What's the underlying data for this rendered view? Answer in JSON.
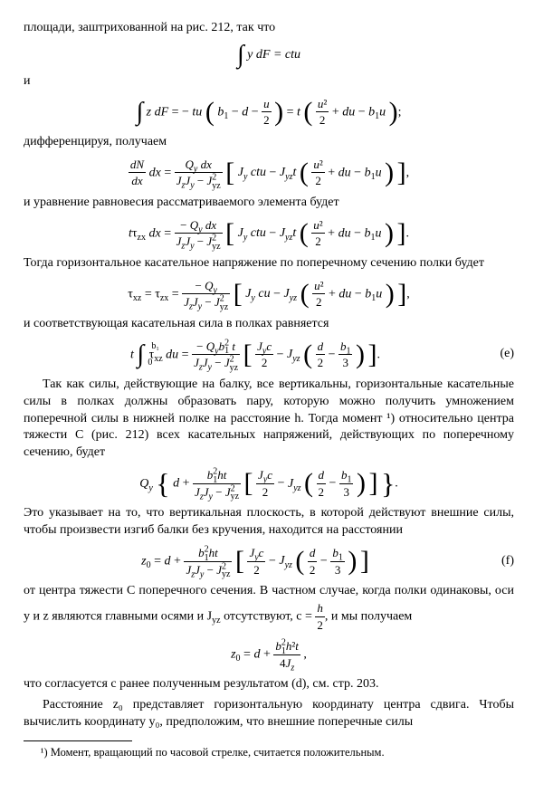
{
  "p1": "площади, заштрихованной на рис. 212, так что",
  "eq1_left": "∫ y dF",
  "eq1_right": "= ctu",
  "p2": "и",
  "eq2_a": "∫ z dF = − tu",
  "eq2_b": "b₁ − d −",
  "eq2_c": "u",
  "eq2_c2": "2",
  "eq2_d": "= t",
  "eq2_e": "u²",
  "eq2_e2": "2",
  "eq2_f": "+ du − b₁u",
  "eq2_g": ";",
  "p3": "дифференцируя, получаем",
  "eq3_a": "dN",
  "eq3_a2": "dx",
  "eq3_b": "dx =",
  "eq3_c": "Q",
  "eq3_c_y": "y",
  "eq3_c2": " dx",
  "eq3_d": "J",
  "eq3_d_z": "z",
  "eq3_d2": "J",
  "eq3_d2_y": "y",
  "eq3_d3": " − J",
  "eq3_d3_yz": "yz",
  "eq3_d3_sq": "2",
  "eq3_e": "J",
  "eq3_e_y": "y",
  "eq3_e2": " ctu − J",
  "eq3_e2_yz": "yz",
  "eq3_e3": "t",
  "eq3_f": "u²",
  "eq3_f2": "2",
  "eq3_g": "+ du − b₁u",
  "p4": "и уравнение равновесия рассматриваемого элемента будет",
  "eq4_a": "tτ",
  "eq4_a_zx": "zx",
  "eq4_b": " dx =",
  "eq4_c": "− Q",
  "eq4_c_y": "y",
  "eq4_c2": " dx",
  "p5": "Тогда горизонтальное касательное напряжение по поперечному сечению полки будет",
  "eq5_a": "τ",
  "eq5_a_xz": "xz",
  "eq5_b": "= τ",
  "eq5_b_zx": "zx",
  "eq5_c": "=",
  "eq5_d": "− Q",
  "eq5_d_y": "y",
  "eq5_e": "J",
  "eq5_e_y": "y",
  "eq5_e2": " cu − J",
  "eq5_e2_yz": "yz",
  "p6": "и соответствующая касательная сила в полках равняется",
  "eq6_a": "t",
  "eq6_b": "τ",
  "eq6_b_xz": "xz",
  "eq6_c": " du =",
  "eq6_d": "− Q",
  "eq6_d_y": "y",
  "eq6_d2": "b",
  "eq6_d2_1": "1",
  "eq6_d2_sq": "2",
  "eq6_d3": " t",
  "eq6_e": "J",
  "eq6_e_y": "y",
  "eq6_e2": "c",
  "eq6_e3": "2",
  "eq6_f": " − J",
  "eq6_f_yz": "yz",
  "eq6_g": "d",
  "eq6_g2": "2",
  "eq6_h": " − ",
  "eq6_i": "b",
  "eq6_i_1": "1",
  "eq6_i2": "3",
  "eq6_tag": "(e)",
  "p7": "Так как силы, действующие на балку, все вертикальны, горизонтальные касательные силы в полках должны образовать пару, которую можно получить умножением поперечной силы в нижней полке на расстояние h. Тогда момент ¹) относительно центра тяжести C (рис. 212) всех касательных напряжений, действующих по поперечному сечению, будет",
  "eq7_a": "Q",
  "eq7_a_y": "y",
  "eq7_b": "d +",
  "eq7_c": "b",
  "eq7_c_1": "1",
  "eq7_c_sq": "2",
  "eq7_c2": "ht",
  "p8": "Это указывает на то, что вертикальная плоскость, в которой действуют внешние силы, чтобы произвести изгиб балки без кручения, находится на расстоянии",
  "eq8_a": "z₀ = d +",
  "eq8_tag": "(f)",
  "p9_a": "от центра тяжести C поперечного сечения. В частном случае, когда полки одинаковы, оси y и z являются главными осями и J",
  "p9_yz": "yz",
  "p9_b": " отсутствуют, c =",
  "p9_h": "h",
  "p9_2": "2",
  "p9_c": ", и мы получаем",
  "eq9_a": "z₀ = d +",
  "eq9_b": "b",
  "eq9_b_1": "1",
  "eq9_b_sq": "2",
  "eq9_c": "h²t",
  "eq9_d": "4J",
  "eq9_d_z": "z",
  "eq9_e": ",",
  "p10": "что согласуется с ранее полученным результатом (d), см. стр. 203.",
  "p11": "Расстояние z₀ представляет горизонтальную координату центра сдвига. Чтобы вычислить координату y₀, предположим, что внешние поперечные силы",
  "fn1": "¹) Момент, вращающий по часовой стрелке, считается положительным.",
  "int_hi": "b₁",
  "int_lo": "0"
}
